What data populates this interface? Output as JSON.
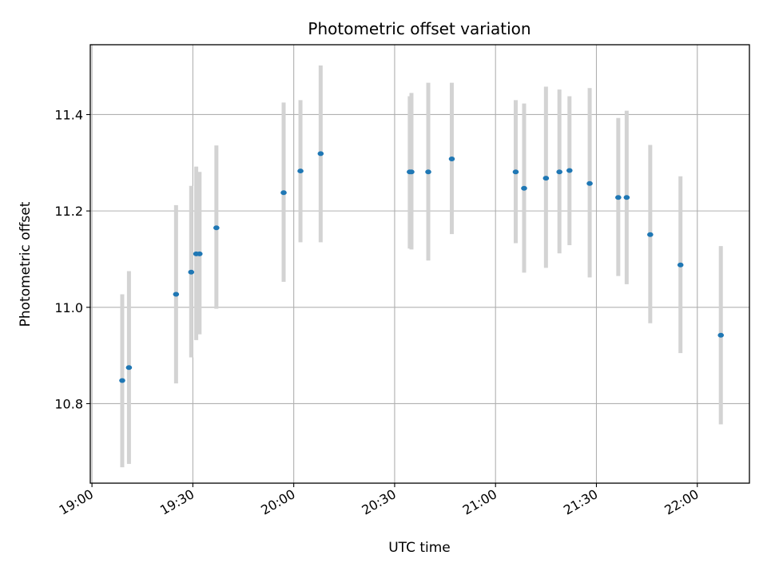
{
  "chart_data": {
    "type": "scatter",
    "title": "Photometric offset variation",
    "xlabel": "UTC time",
    "ylabel": "Photometric offset",
    "x_ticks": [
      "19:00",
      "19:30",
      "20:00",
      "20:30",
      "21:00",
      "21:30",
      "22:00"
    ],
    "y_ticks": [
      10.8,
      11.0,
      11.2,
      11.4
    ],
    "xlim": [
      "18:59.5",
      "22:15.5"
    ],
    "ylim": [
      10.635,
      11.545
    ],
    "grid": true,
    "errorbar_color": "#d3d3d3",
    "point_color": "#1f77b4",
    "series": [
      {
        "x": [
          "19:09",
          "19:11",
          "19:25",
          "19:29.5",
          "19:31",
          "19:32",
          "19:37",
          "19:57",
          "20:02",
          "20:08",
          "20:34.5",
          "20:35",
          "20:40",
          "20:47",
          "21:06",
          "21:08.5",
          "21:15",
          "21:19",
          "21:22",
          "21:28",
          "21:36.5",
          "21:39",
          "21:46",
          "21:55",
          "22:07"
        ],
        "y": [
          10.848,
          10.875,
          11.027,
          11.073,
          11.111,
          11.111,
          11.165,
          11.238,
          11.283,
          11.319,
          11.281,
          11.281,
          11.281,
          11.308,
          11.281,
          11.247,
          11.268,
          11.281,
          11.284,
          11.257,
          11.228,
          11.228,
          11.151,
          11.088,
          10.942
        ],
        "y_low": [
          10.668,
          10.675,
          10.842,
          10.896,
          10.932,
          10.944,
          10.997,
          11.053,
          11.135,
          11.135,
          11.122,
          11.12,
          11.097,
          11.152,
          11.133,
          11.072,
          11.082,
          11.112,
          11.129,
          11.062,
          11.065,
          11.048,
          10.967,
          10.905,
          10.757
        ],
        "y_high": [
          11.027,
          11.075,
          11.212,
          11.252,
          11.292,
          11.281,
          11.336,
          11.425,
          11.43,
          11.502,
          11.438,
          11.445,
          11.466,
          11.466,
          11.43,
          11.423,
          11.458,
          11.452,
          11.438,
          11.455,
          11.393,
          11.408,
          11.337,
          11.272,
          11.127
        ]
      }
    ]
  }
}
